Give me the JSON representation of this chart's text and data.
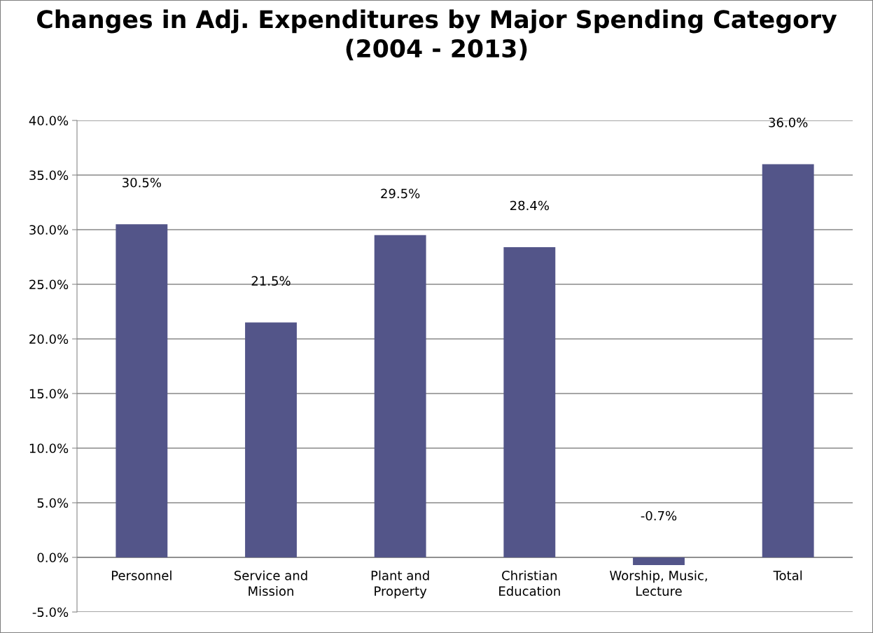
{
  "chart_data": {
    "type": "bar",
    "title": "Changes in Adj. Expenditures by Major Spending Category (2004 - 2013)",
    "categories": [
      "Personnel",
      "Service and Mission",
      "Plant and Property",
      "Christian Education",
      "Worship, Music, Lecture",
      "Total"
    ],
    "values": [
      30.5,
      21.5,
      29.5,
      28.4,
      -0.7,
      36.0
    ],
    "value_labels": [
      "30.5%",
      "21.5%",
      "29.5%",
      "28.4%",
      "-0.7%",
      "36.0%"
    ],
    "color": "#535589",
    "ylim": [
      -5,
      40
    ],
    "yticks": [
      {
        "value": -5,
        "label": "-5.0%"
      },
      {
        "value": 0,
        "label": "0.0%"
      },
      {
        "value": 5,
        "label": "5.0%"
      },
      {
        "value": 10,
        "label": "10.0%"
      },
      {
        "value": 15,
        "label": "15.0%"
      },
      {
        "value": 20,
        "label": "20.0%"
      },
      {
        "value": 25,
        "label": "25.0%"
      },
      {
        "value": 30,
        "label": "30.0%"
      },
      {
        "value": 35,
        "label": "35.0%"
      },
      {
        "value": 40,
        "label": "40.0%"
      }
    ],
    "grid": "y"
  }
}
